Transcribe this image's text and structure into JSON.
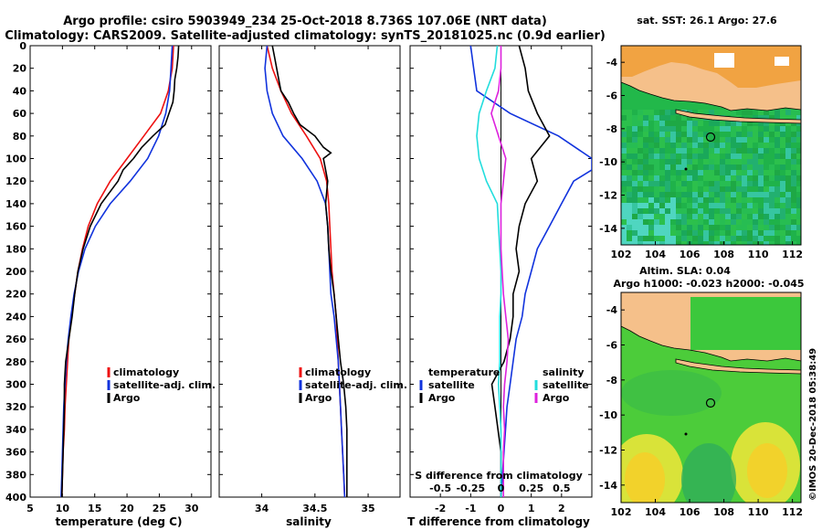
{
  "header": {
    "title_line1": "Argo profile: csiro 5903949_234 25-Oct-2018 8.736S 107.06E (NRT data)",
    "title_line2": "Climatology: CARS2009. Satellite-adjusted climatology: synTS_20181025.nc (0.9d earlier)"
  },
  "colors": {
    "climatology": "#ee1111",
    "satellite": "#1133dd",
    "argo": "#000000",
    "sat_salinity": "#22dddd",
    "argo_salinity": "#dd22dd",
    "land": "#f5c08a",
    "ocean": "#22b84a"
  },
  "side_label": "©IMOS 20-Dec-2018 05:38:49",
  "chart_data": [
    {
      "type": "line",
      "id": "temperature",
      "xlabel": "temperature (deg C)",
      "ylabel": "",
      "xlim": [
        5,
        33
      ],
      "ylim": [
        400,
        0
      ],
      "xticks": [
        5,
        10,
        15,
        20,
        25,
        30
      ],
      "yticks": [
        0,
        20,
        40,
        60,
        80,
        100,
        120,
        140,
        160,
        180,
        200,
        220,
        240,
        260,
        280,
        300,
        320,
        340,
        360,
        380,
        400
      ],
      "legend": [
        "climatology",
        "satellite-adj. clim.",
        "Argo"
      ],
      "legend_position": "bottom-right",
      "series": [
        {
          "name": "climatology",
          "depth": [
            0,
            20,
            40,
            60,
            80,
            100,
            120,
            140,
            160,
            180,
            200,
            220,
            240,
            260,
            280,
            300,
            320,
            340,
            360,
            380,
            400
          ],
          "values": [
            27.2,
            27.0,
            26.4,
            25.2,
            22.6,
            20.0,
            17.4,
            15.4,
            14.0,
            13.1,
            12.4,
            11.9,
            11.4,
            11.0,
            10.8,
            10.6,
            10.4,
            10.3,
            10.1,
            10.0,
            9.9
          ]
        },
        {
          "name": "satellite-adj. clim.",
          "depth": [
            0,
            20,
            40,
            60,
            80,
            100,
            120,
            140,
            160,
            180,
            200,
            220,
            240,
            260,
            280,
            300,
            320,
            340,
            360,
            380,
            400
          ],
          "values": [
            27.0,
            26.8,
            26.6,
            26.0,
            24.9,
            23.2,
            20.5,
            17.4,
            15.1,
            13.5,
            12.5,
            11.8,
            11.3,
            10.9,
            10.6,
            10.4,
            10.2,
            10.1,
            10.0,
            9.9,
            9.8
          ]
        },
        {
          "name": "Argo",
          "depth": [
            0,
            10,
            20,
            30,
            40,
            50,
            60,
            70,
            80,
            90,
            100,
            110,
            120,
            140,
            160,
            180,
            200,
            220,
            240,
            260,
            280,
            300,
            320,
            340,
            360,
            380,
            400
          ],
          "values": [
            28.0,
            27.9,
            27.7,
            27.4,
            27.3,
            27.1,
            26.5,
            25.9,
            24.0,
            22.3,
            21.0,
            19.4,
            18.6,
            16.0,
            14.3,
            13.2,
            12.4,
            11.9,
            11.5,
            11.0,
            10.5,
            10.3,
            10.3,
            10.2,
            10.1,
            10.0,
            9.9
          ]
        }
      ]
    },
    {
      "type": "line",
      "id": "salinity",
      "xlabel": "salinity",
      "xlim": [
        33.6,
        35.3
      ],
      "ylim": [
        400,
        0
      ],
      "xticks": [
        34,
        34.5,
        35
      ],
      "legend": [
        "climatology",
        "satellite-adj. clim.",
        "Argo"
      ],
      "legend_position": "bottom-right",
      "series": [
        {
          "name": "climatology",
          "depth": [
            0,
            20,
            40,
            60,
            80,
            100,
            120,
            140,
            160,
            180,
            200,
            220,
            240,
            260,
            280,
            300,
            320,
            340,
            360,
            380,
            400
          ],
          "values": [
            34.05,
            34.1,
            34.18,
            34.28,
            34.42,
            34.55,
            34.61,
            34.63,
            34.64,
            34.65,
            34.66,
            34.68,
            34.7,
            34.71,
            34.72,
            34.73,
            34.74,
            34.75,
            34.76,
            34.77,
            34.78
          ]
        },
        {
          "name": "satellite-adj. clim.",
          "depth": [
            0,
            20,
            40,
            60,
            80,
            100,
            120,
            140,
            160,
            180,
            200,
            220,
            240,
            260,
            280,
            300,
            320,
            340,
            360,
            380,
            400
          ],
          "values": [
            34.05,
            34.03,
            34.05,
            34.1,
            34.2,
            34.38,
            34.52,
            34.6,
            34.62,
            34.63,
            34.64,
            34.65,
            34.68,
            34.7,
            34.72,
            34.73,
            34.74,
            34.75,
            34.76,
            34.77,
            34.78
          ]
        },
        {
          "name": "Argo",
          "depth": [
            0,
            10,
            20,
            30,
            40,
            50,
            60,
            70,
            80,
            90,
            95,
            100,
            110,
            120,
            140,
            160,
            180,
            200,
            220,
            240,
            260,
            280,
            300,
            320,
            340,
            360,
            380,
            400
          ],
          "values": [
            34.1,
            34.12,
            34.14,
            34.16,
            34.18,
            34.25,
            34.3,
            34.36,
            34.5,
            34.58,
            34.65,
            34.58,
            34.6,
            34.62,
            34.6,
            34.62,
            34.63,
            34.65,
            34.68,
            34.7,
            34.72,
            34.74,
            34.77,
            34.79,
            34.8,
            34.8,
            34.8,
            34.8
          ]
        }
      ]
    },
    {
      "type": "line",
      "id": "difference",
      "xlabel": "T difference from climatology",
      "top_xlabel": "S difference from climatology",
      "xlim": [
        -3,
        3
      ],
      "ylim": [
        400,
        0
      ],
      "xticks": [
        -2,
        -1,
        0,
        1,
        2
      ],
      "top_xticks": [
        -0.5,
        -0.25,
        0,
        0.25,
        0.5
      ],
      "legend": [
        "temperature",
        "satellite",
        "Argo",
        "salinity",
        "satellite",
        "Argo"
      ],
      "legend_position": "bottom",
      "series": [
        {
          "name": "temperature satellite",
          "depth": [
            0,
            20,
            40,
            60,
            80,
            100,
            110,
            120,
            140,
            160,
            180,
            200,
            220,
            240,
            260,
            280,
            300,
            320,
            340,
            360,
            380,
            400
          ],
          "values": [
            -1.0,
            -0.9,
            -0.8,
            0.3,
            1.9,
            3.0,
            3.0,
            2.4,
            2.0,
            1.6,
            1.2,
            1.0,
            0.8,
            0.7,
            0.5,
            0.4,
            0.3,
            0.2,
            0.15,
            0.1,
            0.05,
            0.0
          ]
        },
        {
          "name": "temperature Argo",
          "depth": [
            0,
            20,
            40,
            60,
            80,
            100,
            120,
            140,
            160,
            180,
            200,
            220,
            240,
            260,
            280,
            300,
            320,
            340,
            360,
            380,
            400
          ],
          "values": [
            0.6,
            0.8,
            0.9,
            1.2,
            1.6,
            1.0,
            1.2,
            0.8,
            0.6,
            0.5,
            0.6,
            0.4,
            0.4,
            0.3,
            0.1,
            -0.3,
            -0.2,
            -0.1,
            0.0,
            0.0,
            0.0
          ]
        },
        {
          "name": "salinity satellite",
          "depth": [
            0,
            20,
            40,
            60,
            80,
            100,
            120,
            140,
            160,
            180,
            200,
            220,
            240,
            260,
            280,
            300,
            320,
            340,
            360,
            380,
            400
          ],
          "values": [
            -0.03,
            -0.05,
            -0.12,
            -0.18,
            -0.2,
            -0.18,
            -0.12,
            -0.03,
            -0.02,
            -0.01,
            0.0,
            0.0,
            -0.01,
            -0.01,
            -0.01,
            -0.02,
            -0.01,
            0.0,
            0.0,
            0.0,
            0.0
          ]
        },
        {
          "name": "salinity Argo",
          "depth": [
            0,
            20,
            40,
            60,
            80,
            100,
            120,
            140,
            160,
            180,
            200,
            220,
            240,
            260,
            280,
            300,
            320,
            340,
            360,
            380,
            400
          ],
          "values": [
            0.0,
            0.0,
            -0.02,
            -0.08,
            -0.02,
            0.04,
            0.02,
            0.0,
            0.0,
            0.0,
            0.01,
            0.02,
            0.04,
            0.06,
            0.05,
            0.03,
            0.02,
            0.03,
            0.02,
            0.02,
            0.02
          ]
        }
      ]
    },
    {
      "type": "heatmap",
      "id": "sst-map",
      "title": "sat. SST: 26.1 Argo: 27.6",
      "xlim": [
        102,
        112.5
      ],
      "ylim": [
        -15,
        -3
      ],
      "xticks": [
        102,
        104,
        106,
        108,
        110,
        112
      ],
      "yticks": [
        -4,
        -6,
        -8,
        -10,
        -12,
        -14
      ]
    },
    {
      "type": "heatmap",
      "id": "sla-map",
      "title": "Altim. SLA: 0.04",
      "subtitle": "Argo h1000: -0.023 h2000: -0.045",
      "xlim": [
        102,
        112.5
      ],
      "ylim": [
        -15,
        -3
      ],
      "xticks": [
        102,
        104,
        106,
        108,
        110,
        112
      ],
      "yticks": [
        -4,
        -6,
        -8,
        -10,
        -12,
        -14
      ]
    }
  ]
}
